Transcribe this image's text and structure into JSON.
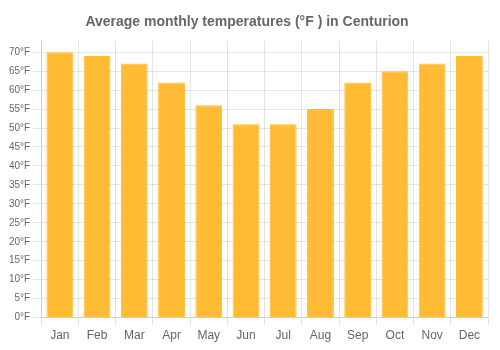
{
  "chart_data": {
    "type": "bar",
    "title": "Average monthly temperatures (°F ) in Centurion",
    "categories": [
      "Jan",
      "Feb",
      "Mar",
      "Apr",
      "May",
      "Jun",
      "Jul",
      "Aug",
      "Sep",
      "Oct",
      "Nov",
      "Dec"
    ],
    "values": [
      70,
      69,
      67,
      62,
      56,
      51,
      51,
      55,
      62,
      65,
      67,
      69
    ],
    "color": "#FFBB33",
    "ylim": [
      0,
      73
    ],
    "yticks": [
      {
        "value": 0,
        "label": "0°F"
      },
      {
        "value": 5,
        "label": "5°F"
      },
      {
        "value": 10,
        "label": "10°F"
      },
      {
        "value": 15,
        "label": "15°F"
      },
      {
        "value": 20,
        "label": "20°F"
      },
      {
        "value": 25,
        "label": "25°F"
      },
      {
        "value": 30,
        "label": "30°F"
      },
      {
        "value": 35,
        "label": "35°F"
      },
      {
        "value": 40,
        "label": "40°F"
      },
      {
        "value": 45,
        "label": "45°F"
      },
      {
        "value": 50,
        "label": "50°F"
      },
      {
        "value": 55,
        "label": "55°F"
      },
      {
        "value": 60,
        "label": "60°F"
      },
      {
        "value": 65,
        "label": "65°F"
      },
      {
        "value": 70,
        "label": "70°F"
      }
    ],
    "grid": true
  }
}
